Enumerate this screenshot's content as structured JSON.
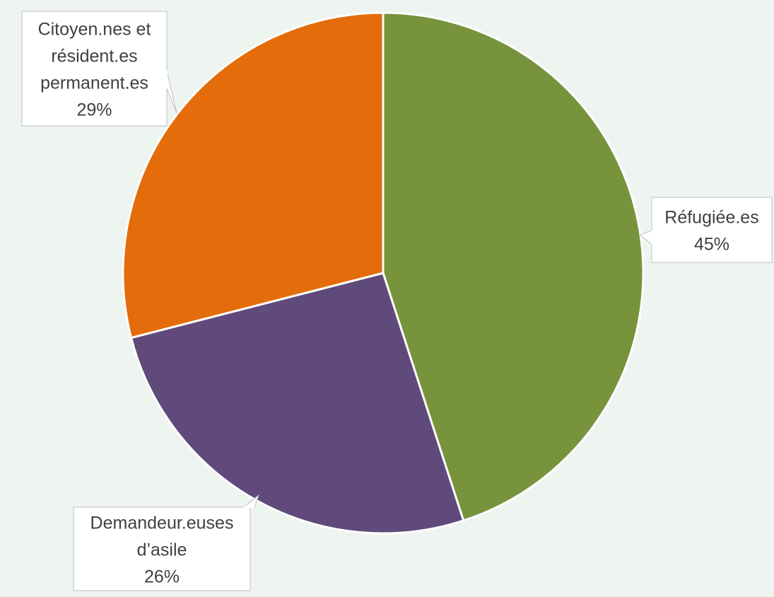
{
  "chart_data": {
    "type": "pie",
    "title": "",
    "start_angle_deg": 0,
    "direction": "clockwise",
    "slices": [
      {
        "label_lines": [
          "Réfugiée.es"
        ],
        "percent_label": "45%",
        "value": 45,
        "color": "#77933c"
      },
      {
        "label_lines": [
          "Demandeur.euses",
          "d’asile"
        ],
        "percent_label": "26%",
        "value": 26,
        "color": "#604a7b"
      },
      {
        "label_lines": [
          "Citoyen.nes et",
          "résident.es",
          "permanent.es"
        ],
        "percent_label": "29%",
        "value": 29,
        "color": "#e46c0a"
      }
    ],
    "legend": "none",
    "data_labels": "callouts"
  },
  "colors": {
    "background": "#eef4ef",
    "slice_border": "#ffffff",
    "callout_fill": "#ffffff",
    "callout_border": "#bfbfbf",
    "label_text": "#404040"
  }
}
